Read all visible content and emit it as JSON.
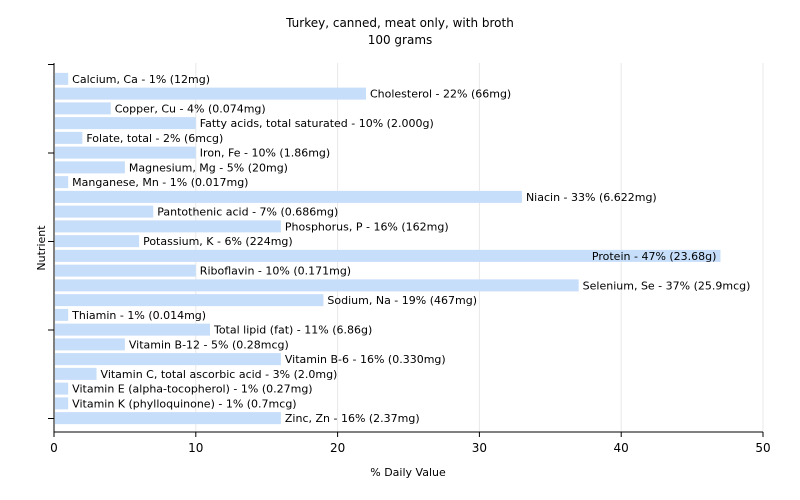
{
  "chart_data": {
    "type": "bar",
    "orientation": "horizontal",
    "title": "Turkey, canned, meat only, with broth",
    "subtitle": "100 grams",
    "xlabel": "% Daily Value",
    "ylabel": "Nutrient",
    "xlim": [
      0,
      50
    ],
    "xticks": [
      0,
      10,
      20,
      30,
      40,
      50
    ],
    "grid": true,
    "bar_color": "#c6defa",
    "categories": [
      "Calcium, Ca",
      "Cholesterol",
      "Copper, Cu",
      "Fatty acids, total saturated",
      "Folate, total",
      "Iron, Fe",
      "Magnesium, Mg",
      "Manganese, Mn",
      "Niacin",
      "Pantothenic acid",
      "Phosphorus, P",
      "Potassium, K",
      "Protein",
      "Riboflavin",
      "Selenium, Se",
      "Sodium, Na",
      "Thiamin",
      "Total lipid (fat)",
      "Vitamin B-12",
      "Vitamin B-6",
      "Vitamin C, total ascorbic acid",
      "Vitamin E (alpha-tocopherol)",
      "Vitamin K (phylloquinone)",
      "Zinc, Zn"
    ],
    "values": [
      1,
      22,
      4,
      10,
      2,
      10,
      5,
      1,
      33,
      7,
      16,
      6,
      47,
      10,
      37,
      19,
      1,
      11,
      5,
      16,
      3,
      1,
      1,
      16
    ],
    "labels": [
      "Calcium, Ca - 1% (12mg)",
      "Cholesterol - 22% (66mg)",
      "Copper, Cu - 4% (0.074mg)",
      "Fatty acids, total saturated - 10% (2.000g)",
      "Folate, total - 2% (6mcg)",
      "Iron, Fe - 10% (1.86mg)",
      "Magnesium, Mg - 5% (20mg)",
      "Manganese, Mn - 1% (0.017mg)",
      "Niacin - 33% (6.622mg)",
      "Pantothenic acid - 7% (0.686mg)",
      "Phosphorus, P - 16% (162mg)",
      "Potassium, K - 6% (224mg)",
      "Protein - 47% (23.68g)",
      "Riboflavin - 10% (0.171mg)",
      "Selenium, Se - 37% (25.9mcg)",
      "Sodium, Na - 19% (467mg)",
      "Thiamin - 1% (0.014mg)",
      "Total lipid (fat) - 11% (6.86g)",
      "Vitamin B-12 - 5% (0.28mcg)",
      "Vitamin B-6 - 16% (0.330mg)",
      "Vitamin C, total ascorbic acid - 3% (2.0mg)",
      "Vitamin E (alpha-tocopherol) - 1% (0.27mg)",
      "Vitamin K (phylloquinone) - 1% (0.7mcg)",
      "Zinc, Zn - 16% (2.37mg)"
    ]
  }
}
